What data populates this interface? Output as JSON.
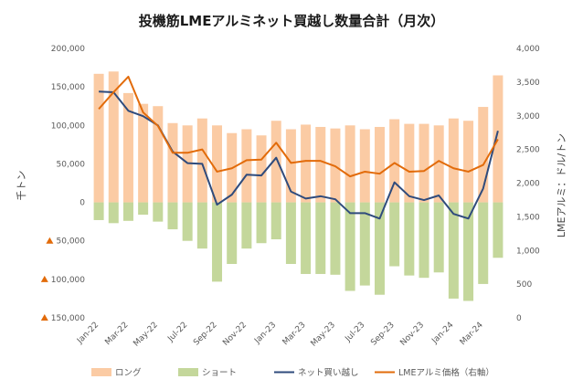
{
  "chart_data": {
    "type": "bar",
    "title": "投機筋LMEアルミネット買越し数量合計（月次）",
    "ylabel": "千トン",
    "y2label": "LMEアルミ：ドル/トン",
    "ylim": [
      -150000,
      200000
    ],
    "y2lim": [
      0,
      4000
    ],
    "yticks": [
      200000,
      150000,
      100000,
      50000,
      0,
      -50000,
      -100000,
      -150000
    ],
    "ytick_labels": [
      "200,000",
      "150,000",
      "100,000",
      "50,000",
      "0",
      "50,000",
      "100,000",
      "150,000"
    ],
    "y2ticks": [
      4000,
      3500,
      3000,
      2500,
      2000,
      1500,
      1000,
      500,
      0
    ],
    "y2tick_labels": [
      "4,000",
      "3,500",
      "3,000",
      "2,500",
      "2,000",
      "1,500",
      "1,000",
      "500",
      "0"
    ],
    "categories": [
      "Jan-22",
      "Feb-22",
      "Mar-22",
      "Apr-22",
      "May-22",
      "Jun-22",
      "Jul-22",
      "Aug-22",
      "Sep-22",
      "Oct-22",
      "Nov-22",
      "Dec-22",
      "Jan-23",
      "Feb-23",
      "Mar-23",
      "Apr-23",
      "May-23",
      "Jun-23",
      "Jul-23",
      "Aug-23",
      "Sep-23",
      "Oct-23",
      "Nov-23",
      "Dec-23",
      "Jan-24",
      "Feb-24",
      "Mar-24",
      "Apr-24"
    ],
    "xtick_labels": [
      "Jan-22",
      "Mar-22",
      "May-22",
      "Jul-22",
      "Sep-22",
      "Nov-22",
      "Jan-23",
      "Mar-23",
      "May-23",
      "Jul-23",
      "Sep-23",
      "Nov-23",
      "Jan-24",
      "Mar-24"
    ],
    "series": [
      {
        "name": "ロング",
        "type": "bar",
        "axis": "left",
        "color": "#fbcba4",
        "values": [
          167000,
          170000,
          142000,
          128000,
          125000,
          103000,
          100000,
          109000,
          100000,
          90000,
          95000,
          87000,
          106000,
          95000,
          101000,
          98000,
          96000,
          100000,
          95000,
          98000,
          108000,
          102000,
          102000,
          100000,
          109000,
          106000,
          124000,
          165000
        ]
      },
      {
        "name": "ショート",
        "type": "bar",
        "axis": "left",
        "color": "#c4d79b",
        "values": [
          -23000,
          -27000,
          -24000,
          -16000,
          -25000,
          -35000,
          -50000,
          -60000,
          -103000,
          -80000,
          -60000,
          -53000,
          -48000,
          -80000,
          -93000,
          -93000,
          -94000,
          -115000,
          -108000,
          -120000,
          -83000,
          -95000,
          -98000,
          -91000,
          -125000,
          -128000,
          -106000,
          -72000
        ]
      },
      {
        "name": "ネット買い越し",
        "type": "line",
        "axis": "left",
        "color": "#2f4b7c",
        "values": [
          144000,
          143000,
          119000,
          112000,
          100000,
          66000,
          51000,
          50000,
          -3000,
          10000,
          36000,
          35000,
          58000,
          14000,
          5000,
          8000,
          4000,
          -14000,
          -14000,
          -21000,
          26000,
          8000,
          3000,
          9000,
          -15000,
          -21000,
          18000,
          93000
        ]
      },
      {
        "name": "LMEアルミ価格（右軸）",
        "type": "line",
        "axis": "right",
        "color": "#e26b0a",
        "values": [
          3100,
          3350,
          3580,
          3050,
          2850,
          2450,
          2450,
          2500,
          2170,
          2220,
          2340,
          2350,
          2600,
          2300,
          2330,
          2330,
          2250,
          2100,
          2170,
          2140,
          2300,
          2170,
          2180,
          2330,
          2220,
          2170,
          2270,
          2650
        ]
      }
    ],
    "legend": [
      "ロング",
      "ショート",
      "ネット買い越し",
      "LMEアルミ価格（右軸）"
    ],
    "legend_position": "bottom",
    "grid": false
  }
}
